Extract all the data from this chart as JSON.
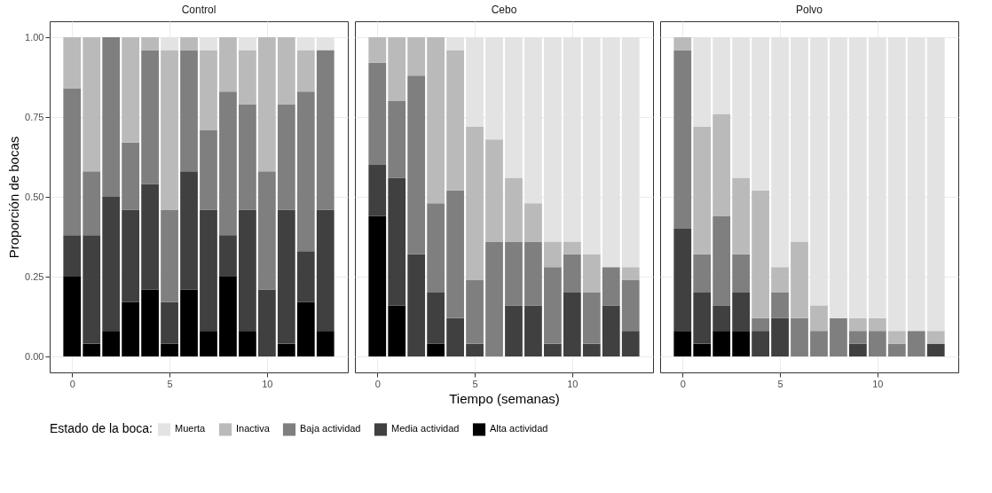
{
  "chart_data": [
    {
      "type": "bar",
      "title": "Control",
      "ylabel": "Proporción de bocas",
      "legend": "bottom",
      "legend_title": "Estado de la boca:",
      "stacked": true,
      "grid": true,
      "x": [
        0,
        1,
        2,
        3,
        4,
        5,
        6,
        7,
        8,
        9,
        10,
        11,
        12,
        13
      ],
      "xlim": [
        -1.15,
        14.15
      ],
      "xticks": [
        0,
        5,
        10
      ],
      "ylim": [
        -0.05,
        1.05
      ],
      "yticks": [
        {
          "value": 0,
          "label": "0.00"
        },
        {
          "value": 0.25,
          "label": "0.25"
        },
        {
          "value": 0.5,
          "label": "0.50"
        },
        {
          "value": 0.75,
          "label": "0.75"
        },
        {
          "value": 1,
          "label": "1.00"
        }
      ],
      "series": [
        {
          "name": "Alta actividad",
          "color": "#000000",
          "values": [
            0.25,
            0.04,
            0.08,
            0.17,
            0.21,
            0.04,
            0.21,
            0.08,
            0.25,
            0.08,
            0,
            0.04,
            0.17,
            0.08
          ]
        },
        {
          "name": "Media actividad",
          "color": "#404040",
          "values": [
            0.13,
            0.34,
            0.42,
            0.29,
            0.33,
            0.13,
            0.37,
            0.38,
            0.13,
            0.38,
            0.21,
            0.42,
            0.16,
            0.38
          ]
        },
        {
          "name": "Baja actividad",
          "color": "#7f7f7f",
          "values": [
            0.46,
            0.2,
            0.5,
            0.21,
            0.42,
            0.29,
            0.38,
            0.25,
            0.45,
            0.33,
            0.37,
            0.33,
            0.5,
            0.5
          ]
        },
        {
          "name": "Inactiva",
          "color": "#bababa",
          "values": [
            0.16,
            0.42,
            0,
            0.33,
            0.04,
            0.5,
            0.04,
            0.25,
            0.17,
            0.17,
            0.42,
            0.21,
            0.13,
            0
          ]
        },
        {
          "name": "Muerta",
          "color": "#e3e3e3",
          "values": [
            0,
            0,
            0,
            0,
            0,
            0.04,
            0,
            0.04,
            0,
            0.04,
            0,
            0,
            0.04,
            0.04
          ]
        }
      ]
    },
    {
      "type": "bar",
      "title": "Cebo",
      "xlabel": "Tiempo (semanas)",
      "stacked": true,
      "grid": true,
      "tick_labels": "x",
      "x": [
        0,
        1,
        2,
        3,
        4,
        5,
        6,
        7,
        8,
        9,
        10,
        11,
        12,
        13
      ],
      "xlim": [
        -1.15,
        14.15
      ],
      "xticks": [
        0,
        5,
        10
      ],
      "ylim": [
        -0.05,
        1.05
      ],
      "yticks": [
        0,
        0.25,
        0.5,
        0.75,
        1
      ],
      "series": [
        {
          "name": "Alta actividad",
          "color": "#000000",
          "values": [
            0.44,
            0.16,
            0,
            0.04,
            0,
            0,
            0,
            0,
            0,
            0,
            0,
            0,
            0,
            0
          ]
        },
        {
          "name": "Media actividad",
          "color": "#404040",
          "values": [
            0.16,
            0.4,
            0.32,
            0.16,
            0.12,
            0.04,
            0,
            0.16,
            0.16,
            0.04,
            0.2,
            0.04,
            0.16,
            0.08
          ]
        },
        {
          "name": "Baja actividad",
          "color": "#7f7f7f",
          "values": [
            0.32,
            0.24,
            0.56,
            0.28,
            0.4,
            0.2,
            0.36,
            0.2,
            0.2,
            0.24,
            0.12,
            0.16,
            0.12,
            0.16
          ]
        },
        {
          "name": "Inactiva",
          "color": "#bababa",
          "values": [
            0.08,
            0.2,
            0.12,
            0.52,
            0.44,
            0.48,
            0.32,
            0.2,
            0.12,
            0.08,
            0.04,
            0.12,
            0,
            0.04
          ]
        },
        {
          "name": "Muerta",
          "color": "#e3e3e3",
          "values": [
            0,
            0,
            0,
            0,
            0.04,
            0.28,
            0.32,
            0.44,
            0.52,
            0.64,
            0.64,
            0.68,
            0.72,
            0.72
          ]
        }
      ]
    },
    {
      "type": "bar",
      "title": "Polvo",
      "stacked": true,
      "grid": true,
      "tick_labels": "x",
      "x": [
        0,
        1,
        2,
        3,
        4,
        5,
        6,
        7,
        8,
        9,
        10,
        11,
        12,
        13
      ],
      "xlim": [
        -1.15,
        14.15
      ],
      "xticks": [
        0,
        5,
        10
      ],
      "ylim": [
        -0.05,
        1.05
      ],
      "yticks": [
        0,
        0.25,
        0.5,
        0.75,
        1
      ],
      "series": [
        {
          "name": "Alta actividad",
          "color": "#000000",
          "values": [
            0.08,
            0.04,
            0.08,
            0.08,
            0,
            0,
            0,
            0,
            0,
            0,
            0,
            0,
            0,
            0
          ]
        },
        {
          "name": "Media actividad",
          "color": "#404040",
          "values": [
            0.32,
            0.16,
            0.08,
            0.12,
            0.08,
            0.12,
            0,
            0,
            0,
            0.04,
            0,
            0,
            0,
            0.04
          ]
        },
        {
          "name": "Baja actividad",
          "color": "#7f7f7f",
          "values": [
            0.56,
            0.12,
            0.28,
            0.12,
            0.04,
            0.08,
            0.12,
            0.08,
            0.12,
            0.04,
            0.08,
            0.04,
            0.08,
            0
          ]
        },
        {
          "name": "Inactiva",
          "color": "#bababa",
          "values": [
            0.04,
            0.4,
            0.32,
            0.24,
            0.4,
            0.08,
            0.24,
            0.08,
            0,
            0.04,
            0.04,
            0.04,
            0,
            0.04
          ]
        },
        {
          "name": "Muerta",
          "color": "#e3e3e3",
          "values": [
            0,
            0.28,
            0.24,
            0.44,
            0.48,
            0.72,
            0.64,
            0.84,
            0.88,
            0.88,
            0.88,
            0.92,
            0.92,
            0.92
          ]
        }
      ]
    }
  ]
}
